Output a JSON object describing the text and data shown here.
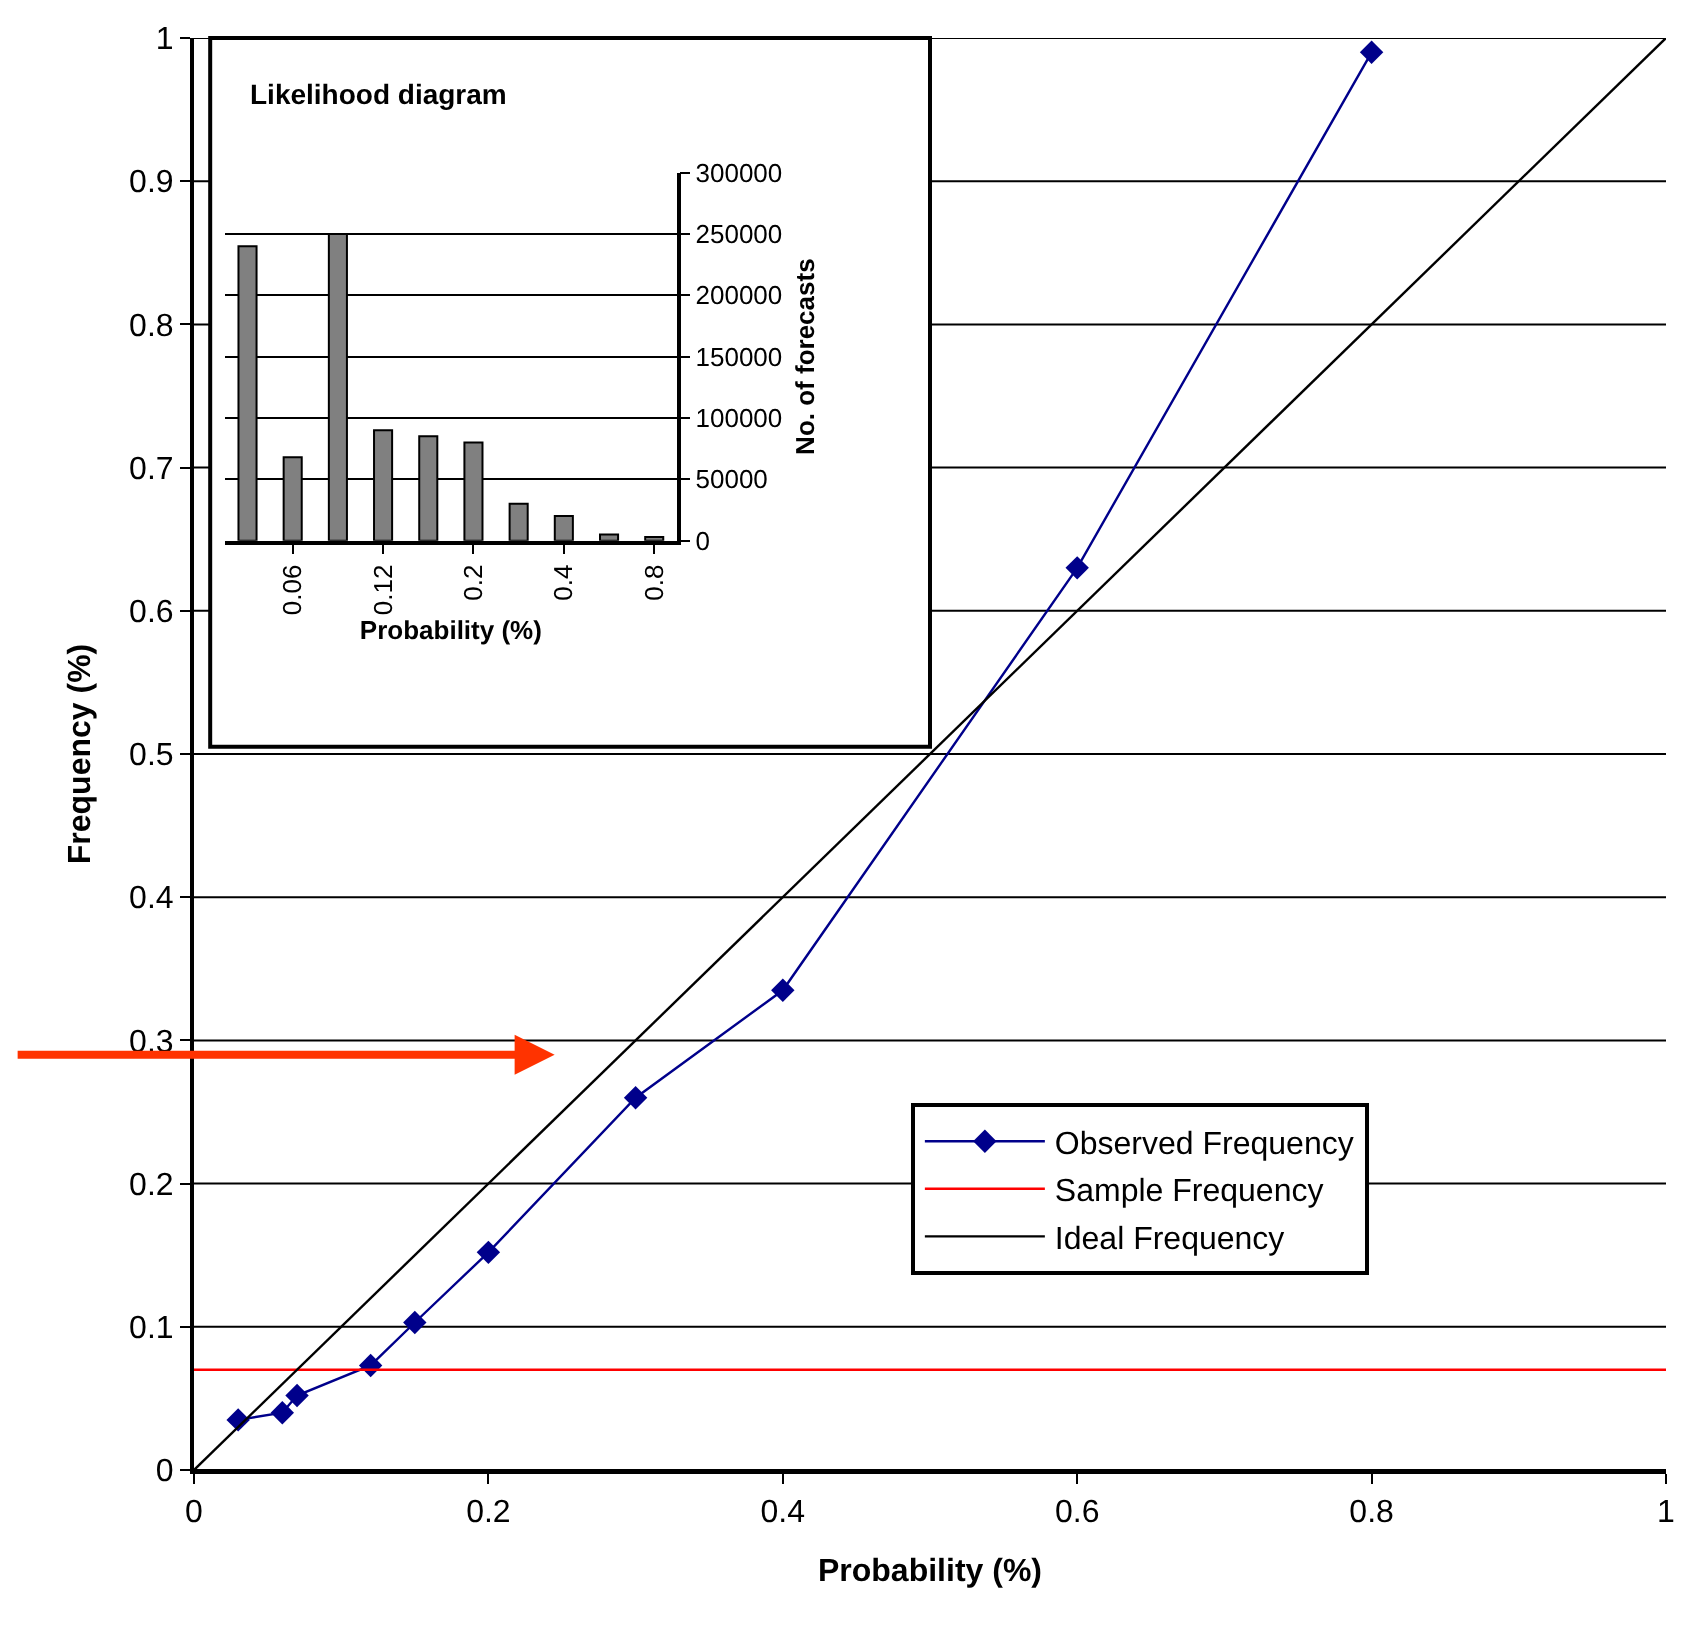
{
  "chart_data": [
    {
      "type": "line",
      "xlabel": "Probability (%)",
      "ylabel": "Frequency (%)",
      "xlim": [
        0,
        1
      ],
      "ylim": [
        0,
        1
      ],
      "xticks": [
        0,
        0.2,
        0.4,
        0.6,
        0.8,
        1
      ],
      "yticks": [
        0,
        0.1,
        0.2,
        0.3,
        0.4,
        0.5,
        0.6,
        0.7,
        0.8,
        0.9,
        1
      ],
      "grid": "y",
      "legend": "bottom right",
      "series": [
        {
          "name": "Observed Frequency",
          "color": "#00008b",
          "marker": "diamond",
          "x": [
            0.03,
            0.06,
            0.07,
            0.12,
            0.15,
            0.2,
            0.3,
            0.4,
            0.6,
            0.8
          ],
          "values": [
            0.035,
            0.04,
            0.052,
            0.073,
            0.103,
            0.152,
            0.26,
            0.335,
            0.63,
            0.99
          ]
        },
        {
          "name": "Sample Frequency",
          "color": "#ff0000",
          "marker": "none",
          "x": [
            0,
            1
          ],
          "values": [
            0.07,
            0.07
          ]
        },
        {
          "name": "Ideal Frequency",
          "color": "#000000",
          "marker": "none",
          "x": [
            0,
            1
          ],
          "values": [
            0,
            1
          ]
        }
      ]
    },
    {
      "type": "bar",
      "title": "Likelihood diagram",
      "xlabel": "Probability (%)",
      "ylabel": "No. of forecasts",
      "categories": [
        null,
        "0.06",
        null,
        "0.12",
        null,
        "0.2",
        null,
        "0.4",
        null,
        "0.8"
      ],
      "values": [
        240000,
        68000,
        250000,
        90000,
        85000,
        80000,
        30000,
        20000,
        5000,
        3000
      ],
      "color": "#808080",
      "ylim": [
        0,
        300000
      ],
      "yticks": [
        0,
        50000,
        100000,
        150000,
        200000,
        250000,
        300000
      ],
      "grid": "y"
    }
  ]
}
